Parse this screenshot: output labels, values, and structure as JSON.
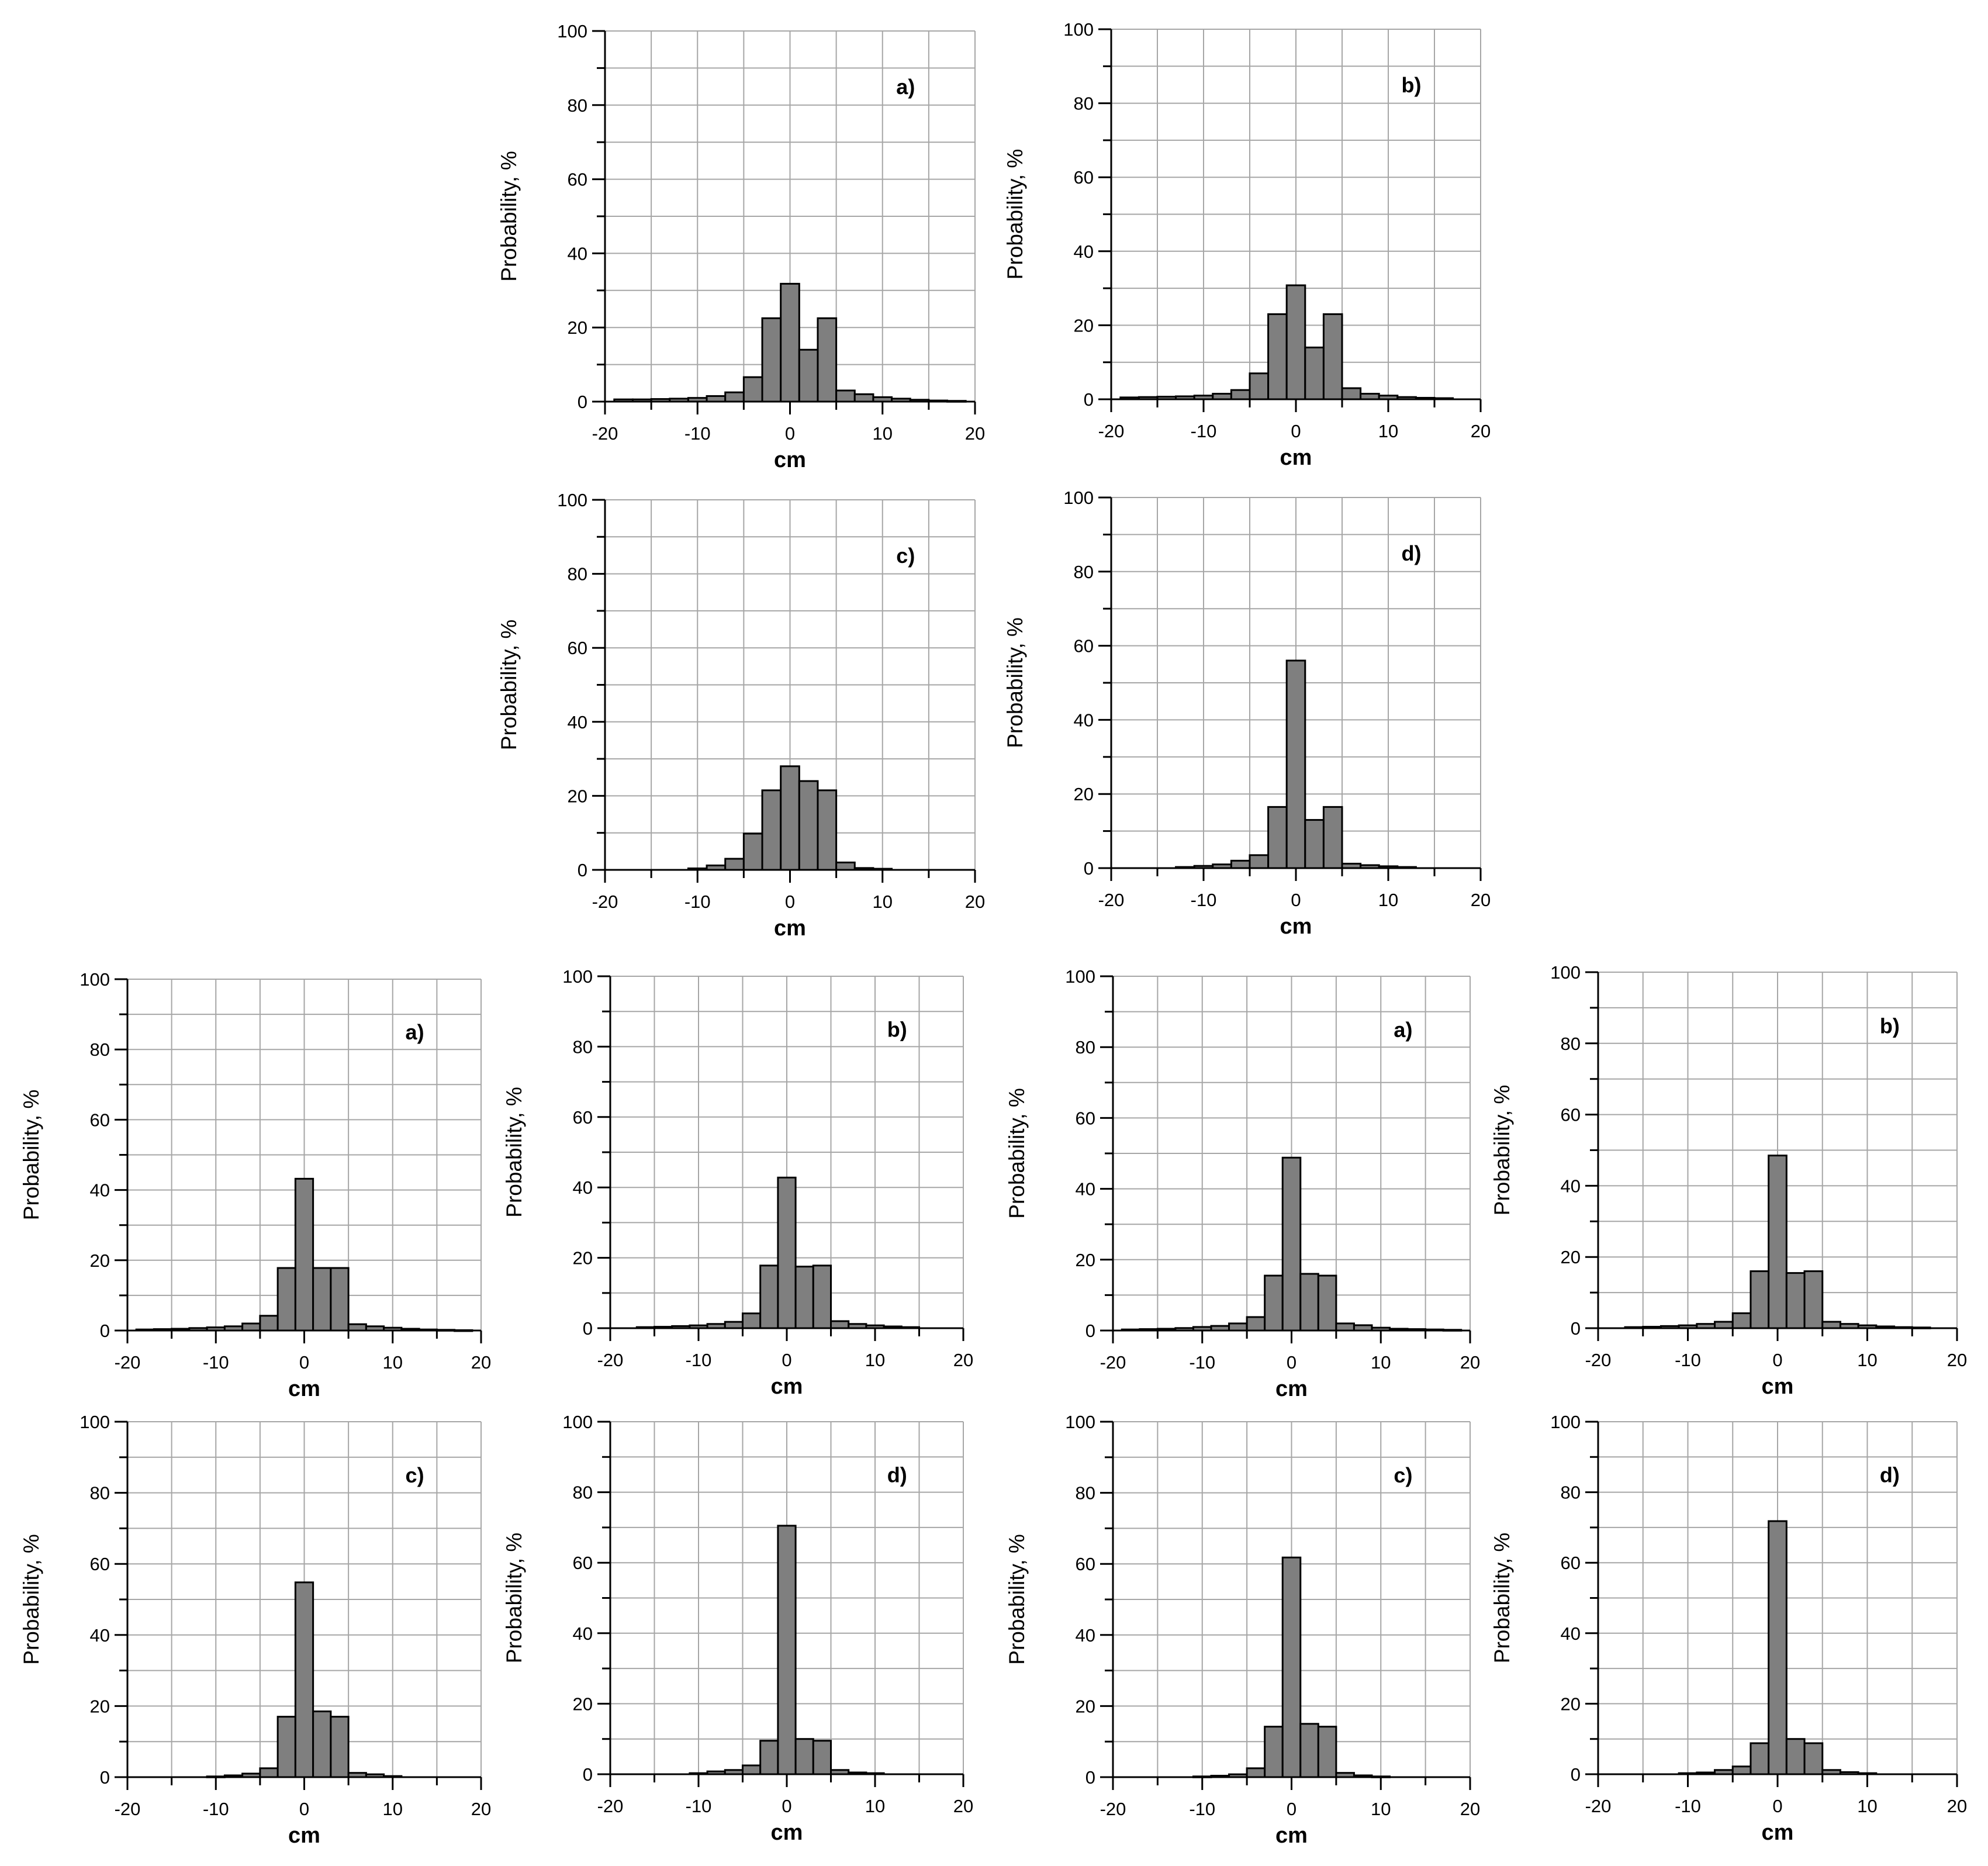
{
  "chart_data": [
    {
      "type": "bar",
      "panel_label": "a)",
      "xlabel": "cm",
      "ylabel": "Probability, %",
      "xlim": [
        -20,
        20
      ],
      "ylim": [
        0,
        100
      ],
      "x_ticks": [
        -20,
        -10,
        0,
        10,
        20
      ],
      "y_ticks": [
        0,
        20,
        40,
        60,
        80,
        100
      ],
      "grid": true,
      "bin_width": 2,
      "x": [
        -18,
        -16,
        -14,
        -12,
        -10,
        -8,
        -6,
        -4,
        -2,
        0,
        2,
        4,
        6,
        8,
        10,
        12,
        14,
        16,
        18
      ],
      "values": [
        0.6,
        0.6,
        0.7,
        0.8,
        1.0,
        1.5,
        2.5,
        6.6,
        22.5,
        31.8,
        14,
        22.5,
        3,
        2,
        1.2,
        0.8,
        0.5,
        0.3,
        0.2
      ]
    },
    {
      "type": "bar",
      "panel_label": "b)",
      "xlabel": "cm",
      "ylabel": "Probability, %",
      "xlim": [
        -20,
        20
      ],
      "ylim": [
        0,
        100
      ],
      "x_ticks": [
        -20,
        -10,
        0,
        10,
        20
      ],
      "y_ticks": [
        0,
        20,
        40,
        60,
        80,
        100
      ],
      "grid": true,
      "bin_width": 2,
      "x": [
        -18,
        -16,
        -14,
        -12,
        -10,
        -8,
        -6,
        -4,
        -2,
        0,
        2,
        4,
        6,
        8,
        10,
        12,
        14,
        16,
        18
      ],
      "values": [
        0.5,
        0.6,
        0.7,
        0.8,
        1.0,
        1.5,
        2.5,
        7,
        23,
        30.8,
        14,
        23,
        3,
        1.5,
        1.0,
        0.6,
        0.4,
        0.3,
        0
      ]
    },
    {
      "type": "bar",
      "panel_label": "c)",
      "xlabel": "cm",
      "ylabel": "Probability, %",
      "xlim": [
        -20,
        20
      ],
      "ylim": [
        0,
        100
      ],
      "x_ticks": [
        -20,
        -10,
        0,
        10,
        20
      ],
      "y_ticks": [
        0,
        20,
        40,
        60,
        80,
        100
      ],
      "grid": true,
      "bin_width": 2,
      "x": [
        -18,
        -16,
        -14,
        -12,
        -10,
        -8,
        -6,
        -4,
        -2,
        0,
        2,
        4,
        6,
        8,
        10,
        12,
        14,
        16,
        18
      ],
      "values": [
        0,
        0,
        0,
        0,
        0.4,
        1.2,
        3,
        9.8,
        21.5,
        28,
        24,
        21.5,
        2,
        0.5,
        0.3,
        0,
        0,
        0,
        0
      ]
    },
    {
      "type": "bar",
      "panel_label": "d)",
      "xlabel": "cm",
      "ylabel": "Probability, %",
      "xlim": [
        -20,
        20
      ],
      "ylim": [
        0,
        100
      ],
      "x_ticks": [
        -20,
        -10,
        0,
        10,
        20
      ],
      "y_ticks": [
        0,
        20,
        40,
        60,
        80,
        100
      ],
      "grid": true,
      "bin_width": 2,
      "x": [
        -18,
        -16,
        -14,
        -12,
        -10,
        -8,
        -6,
        -4,
        -2,
        0,
        2,
        4,
        6,
        8,
        10,
        12,
        14,
        16,
        18
      ],
      "values": [
        0,
        0,
        0,
        0.3,
        0.6,
        1.0,
        2,
        3.5,
        16.5,
        56,
        13,
        16.5,
        1.2,
        0.8,
        0.5,
        0.3,
        0,
        0,
        0
      ]
    },
    {
      "type": "bar",
      "panel_label": "a)",
      "xlabel": "cm",
      "ylabel": "Probability, %",
      "xlim": [
        -20,
        20
      ],
      "ylim": [
        0,
        100
      ],
      "x_ticks": [
        -20,
        -10,
        0,
        10,
        20
      ],
      "y_ticks": [
        0,
        20,
        40,
        60,
        80,
        100
      ],
      "grid": true,
      "bin_width": 2,
      "x": [
        -18,
        -16,
        -14,
        -12,
        -10,
        -8,
        -6,
        -4,
        -2,
        0,
        2,
        4,
        6,
        8,
        10,
        12,
        14,
        16,
        18
      ],
      "values": [
        0.3,
        0.4,
        0.5,
        0.7,
        0.9,
        1.2,
        2,
        4.2,
        17.8,
        43.2,
        17.8,
        17.8,
        1.8,
        1.2,
        0.8,
        0.5,
        0.3,
        0.2,
        0.1
      ]
    },
    {
      "type": "bar",
      "panel_label": "b)",
      "xlabel": "cm",
      "ylabel": "Probability, %",
      "xlim": [
        -20,
        20
      ],
      "ylim": [
        0,
        100
      ],
      "x_ticks": [
        -20,
        -10,
        0,
        10,
        20
      ],
      "y_ticks": [
        0,
        20,
        40,
        60,
        80,
        100
      ],
      "grid": true,
      "bin_width": 2,
      "x": [
        -18,
        -16,
        -14,
        -12,
        -10,
        -8,
        -6,
        -4,
        -2,
        0,
        2,
        4,
        6,
        8,
        10,
        12,
        14,
        16,
        18
      ],
      "values": [
        0,
        0.3,
        0.4,
        0.6,
        0.8,
        1.2,
        1.8,
        4.2,
        17.8,
        42.8,
        17.5,
        17.8,
        2,
        1.2,
        0.8,
        0.5,
        0.3,
        0,
        0
      ]
    },
    {
      "type": "bar",
      "panel_label": "a)",
      "xlabel": "cm",
      "ylabel": "Probability, %",
      "xlim": [
        -20,
        20
      ],
      "ylim": [
        0,
        100
      ],
      "x_ticks": [
        -20,
        -10,
        0,
        10,
        20
      ],
      "y_ticks": [
        0,
        20,
        40,
        60,
        80,
        100
      ],
      "grid": true,
      "bin_width": 2,
      "x": [
        -18,
        -16,
        -14,
        -12,
        -10,
        -8,
        -6,
        -4,
        -2,
        0,
        2,
        4,
        6,
        8,
        10,
        12,
        14,
        16,
        18
      ],
      "values": [
        0.3,
        0.4,
        0.5,
        0.7,
        1.0,
        1.3,
        2,
        3.8,
        15.5,
        48.8,
        16,
        15.5,
        2,
        1.5,
        0.8,
        0.5,
        0.4,
        0.3,
        0.2
      ]
    },
    {
      "type": "bar",
      "panel_label": "b)",
      "xlabel": "cm",
      "ylabel": "Probability, %",
      "xlim": [
        -20,
        20
      ],
      "ylim": [
        0,
        100
      ],
      "x_ticks": [
        -20,
        -10,
        0,
        10,
        20
      ],
      "y_ticks": [
        0,
        20,
        40,
        60,
        80,
        100
      ],
      "grid": true,
      "bin_width": 2,
      "x": [
        -18,
        -16,
        -14,
        -12,
        -10,
        -8,
        -6,
        -4,
        -2,
        0,
        2,
        4,
        6,
        8,
        10,
        12,
        14,
        16,
        18
      ],
      "values": [
        0,
        0.3,
        0.4,
        0.6,
        0.8,
        1.2,
        1.8,
        4.2,
        16,
        48.5,
        15.5,
        16,
        1.8,
        1.2,
        0.8,
        0.5,
        0.3,
        0.2,
        0
      ]
    },
    {
      "type": "bar",
      "panel_label": "c)",
      "xlabel": "cm",
      "ylabel": "Probability, %",
      "xlim": [
        -20,
        20
      ],
      "ylim": [
        0,
        100
      ],
      "x_ticks": [
        -20,
        -10,
        0,
        10,
        20
      ],
      "y_ticks": [
        0,
        20,
        40,
        60,
        80,
        100
      ],
      "grid": true,
      "bin_width": 2,
      "x": [
        -18,
        -16,
        -14,
        -12,
        -10,
        -8,
        -6,
        -4,
        -2,
        0,
        2,
        4,
        6,
        8,
        10,
        12,
        14,
        16,
        18
      ],
      "values": [
        0,
        0,
        0,
        0,
        0.2,
        0.5,
        1,
        2.5,
        17,
        54.8,
        18.5,
        17,
        1.2,
        0.8,
        0.3,
        0,
        0,
        0,
        0
      ]
    },
    {
      "type": "bar",
      "panel_label": "d)",
      "xlabel": "cm",
      "ylabel": "Probability, %",
      "xlim": [
        -20,
        20
      ],
      "ylim": [
        0,
        100
      ],
      "x_ticks": [
        -20,
        -10,
        0,
        10,
        20
      ],
      "y_ticks": [
        0,
        20,
        40,
        60,
        80,
        100
      ],
      "grid": true,
      "bin_width": 2,
      "x": [
        -18,
        -16,
        -14,
        -12,
        -10,
        -8,
        -6,
        -4,
        -2,
        0,
        2,
        4,
        6,
        8,
        10,
        12,
        14,
        16,
        18
      ],
      "values": [
        0,
        0,
        0,
        0,
        0.3,
        0.8,
        1.2,
        2.5,
        9.5,
        70.5,
        10,
        9.5,
        1.2,
        0.5,
        0.3,
        0,
        0,
        0,
        0
      ]
    },
    {
      "type": "bar",
      "panel_label": "c)",
      "xlabel": "cm",
      "ylabel": "Probability, %",
      "xlim": [
        -20,
        20
      ],
      "ylim": [
        0,
        100
      ],
      "x_ticks": [
        -20,
        -10,
        0,
        10,
        20
      ],
      "y_ticks": [
        0,
        20,
        40,
        60,
        80,
        100
      ],
      "grid": true,
      "bin_width": 2,
      "x": [
        -18,
        -16,
        -14,
        -12,
        -10,
        -8,
        -6,
        -4,
        -2,
        0,
        2,
        4,
        6,
        8,
        10,
        12,
        14,
        16,
        18
      ],
      "values": [
        0,
        0,
        0,
        0,
        0.2,
        0.4,
        0.8,
        2.5,
        14.2,
        61.8,
        15,
        14.2,
        1.2,
        0.5,
        0.2,
        0,
        0,
        0,
        0
      ]
    },
    {
      "type": "bar",
      "panel_label": "d)",
      "xlabel": "cm",
      "ylabel": "Probability, %",
      "xlim": [
        -20,
        20
      ],
      "ylim": [
        0,
        100
      ],
      "x_ticks": [
        -20,
        -10,
        0,
        10,
        20
      ],
      "y_ticks": [
        0,
        20,
        40,
        60,
        80,
        100
      ],
      "grid": true,
      "bin_width": 2,
      "x": [
        -18,
        -16,
        -14,
        -12,
        -10,
        -8,
        -6,
        -4,
        -2,
        0,
        2,
        4,
        6,
        8,
        10,
        12,
        14,
        16,
        18
      ],
      "values": [
        0,
        0,
        0,
        0,
        0.3,
        0.5,
        1.2,
        2.2,
        8.8,
        71.8,
        10,
        8.8,
        1.2,
        0.6,
        0.3,
        0,
        0,
        0,
        0
      ]
    }
  ]
}
